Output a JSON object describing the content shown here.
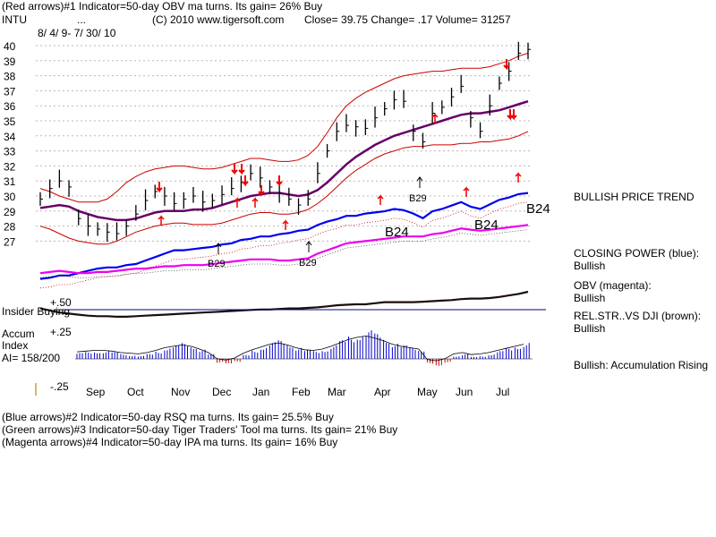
{
  "header": {
    "line1": "(Red arrows)#1 Indicator=50-day OBV ma turns. Its gain= 26% Buy",
    "ticker": "INTU",
    "dots": "...",
    "copyright": "(C) 2010 www.tigersoft.com",
    "close": "Close=  39.75  Change= .17 Volume= 31257",
    "date_range": "8/ 4/ 9- 7/ 30/ 10"
  },
  "footer": {
    "line1": "(Blue arrows)#2 Indicator=50-day RSQ ma turns. Its gain= 25.5% Buy",
    "line2": "(Green arrows)#3 Indicator=50-day Tiger Traders' Tool ma turns. Its gain= 21% Buy",
    "line3": "(Magenta arrows)#4 Indicator=50-day IPA ma turns. Its gain= 16% Buy"
  },
  "side_panel": {
    "trend": "BULLISH PRICE TREND",
    "cp_label": "CLOSING POWER (blue):",
    "cp_value": "Bullish",
    "obv_label": "OBV (magenta):",
    "obv_value": "Bullish",
    "rs_label": "REL.STR..VS DJI (brown):",
    "rs_value": "Bullish",
    "accum_note": "Bullish: Accumulation Rising"
  },
  "lower_panel": {
    "plus50": "+.50",
    "insider": "Insider Buying",
    "plus25": "+.25",
    "accum1": "Accum",
    "accum2": "Index",
    "ai": "AI= 158/200",
    "minus25": "-.25"
  },
  "chart_data": {
    "type": "line",
    "y_ticks": [
      "40",
      "39",
      "38",
      "37",
      "36",
      "35",
      "34",
      "33",
      "32",
      "31",
      "30",
      "29",
      "28",
      "27"
    ],
    "x_labels": [
      "Sep",
      "Oct",
      "Nov",
      "Dec",
      "Jan",
      "Feb",
      "Mar",
      "Apr",
      "May",
      "Jun",
      "Jul"
    ],
    "ylim": [
      26.5,
      40.5
    ],
    "grid": true,
    "price_close": [
      29.8,
      30.5,
      31.0,
      30.6,
      28.5,
      28.0,
      27.8,
      27.6,
      27.5,
      28.0,
      28.8,
      29.7,
      30.3,
      30.0,
      29.5,
      29.8,
      30.0,
      29.6,
      29.7,
      30.1,
      30.5,
      30.9,
      31.5,
      31.2,
      30.6,
      30.2,
      29.8,
      29.4,
      29.8,
      31.5,
      33.0,
      34.3,
      34.7,
      34.6,
      34.5,
      35.2,
      35.8,
      36.4,
      36.3,
      34.3,
      33.6,
      35.5,
      35.9,
      36.6,
      37.3,
      35.2,
      34.3,
      36.0,
      37.5,
      38.3,
      39.5,
      39.75
    ],
    "ma50": [
      29.2,
      29.3,
      29.4,
      29.3,
      29.0,
      28.8,
      28.6,
      28.5,
      28.4,
      28.4,
      28.5,
      28.7,
      28.9,
      29.0,
      29.0,
      29.0,
      29.1,
      29.1,
      29.2,
      29.4,
      29.6,
      29.8,
      30.0,
      30.1,
      30.2,
      30.2,
      30.1,
      30.0,
      30.1,
      30.4,
      30.9,
      31.5,
      32.1,
      32.6,
      33.0,
      33.4,
      33.7,
      34.0,
      34.2,
      34.4,
      34.6,
      34.8,
      35.0,
      35.2,
      35.4,
      35.5,
      35.5,
      35.6,
      35.7,
      35.9,
      36.1,
      36.3
    ],
    "band_upper": [
      30.5,
      30.3,
      30.0,
      29.8,
      29.6,
      29.6,
      29.6,
      29.8,
      30.3,
      30.9,
      31.3,
      31.6,
      31.8,
      31.9,
      32.0,
      32.0,
      31.9,
      31.8,
      31.8,
      31.9,
      32.1,
      32.3,
      32.5,
      32.5,
      32.4,
      32.3,
      32.3,
      32.4,
      32.7,
      33.3,
      34.2,
      35.2,
      36.0,
      36.5,
      36.9,
      37.2,
      37.5,
      37.8,
      38.0,
      38.1,
      38.2,
      38.3,
      38.3,
      38.4,
      38.5,
      38.5,
      38.5,
      38.6,
      38.8,
      39.0,
      39.3,
      39.5
    ],
    "band_lower": [
      28.0,
      27.8,
      27.5,
      27.2,
      27.0,
      26.9,
      26.8,
      26.8,
      27.0,
      27.3,
      27.6,
      27.8,
      28.0,
      28.1,
      28.2,
      28.2,
      28.1,
      28.1,
      28.1,
      28.2,
      28.4,
      28.6,
      28.8,
      28.9,
      28.9,
      28.8,
      28.8,
      28.9,
      29.1,
      29.5,
      30.0,
      30.6,
      31.2,
      31.7,
      32.1,
      32.5,
      32.8,
      33.0,
      33.2,
      33.3,
      33.3,
      33.4,
      33.4,
      33.4,
      33.5,
      33.5,
      33.6,
      33.6,
      33.7,
      33.8,
      34.0,
      34.3
    ],
    "series_lower": [
      {
        "name": "CLOSING POWER (blue)",
        "color": "#0000ee",
        "level": [
          0.05,
          0.06,
          0.08,
          0.08,
          0.1,
          0.12,
          0.14,
          0.15,
          0.15,
          0.17,
          0.18,
          0.21,
          0.24,
          0.27,
          0.3,
          0.3,
          0.31,
          0.32,
          0.33,
          0.35,
          0.36,
          0.39,
          0.4,
          0.42,
          0.42,
          0.44,
          0.45,
          0.47,
          0.48,
          0.52,
          0.55,
          0.57,
          0.6,
          0.6,
          0.62,
          0.63,
          0.64,
          0.66,
          0.65,
          0.62,
          0.58,
          0.64,
          0.66,
          0.69,
          0.72,
          0.68,
          0.66,
          0.7,
          0.74,
          0.76,
          0.79,
          0.8
        ]
      },
      {
        "name": "OBV (magenta)",
        "color": "#ee00ee",
        "level": [
          0.1,
          0.11,
          0.12,
          0.11,
          0.1,
          0.1,
          0.11,
          0.11,
          0.12,
          0.13,
          0.14,
          0.14,
          0.15,
          0.16,
          0.16,
          0.17,
          0.17,
          0.17,
          0.18,
          0.19,
          0.2,
          0.21,
          0.22,
          0.22,
          0.22,
          0.21,
          0.21,
          0.22,
          0.23,
          0.27,
          0.3,
          0.33,
          0.36,
          0.37,
          0.38,
          0.39,
          0.4,
          0.41,
          0.42,
          0.42,
          0.42,
          0.44,
          0.45,
          0.47,
          0.49,
          0.48,
          0.47,
          0.48,
          0.49,
          0.5,
          0.51,
          0.52
        ]
      },
      {
        "name": "REL.STR..VS DJI (brown)",
        "color": "#1a0f0a",
        "level": [
          0.3,
          0.26,
          0.22,
          0.2,
          0.18,
          0.16,
          0.15,
          0.15,
          0.14,
          0.14,
          0.15,
          0.16,
          0.17,
          0.18,
          0.19,
          0.2,
          0.21,
          0.22,
          0.23,
          0.24,
          0.25,
          0.26,
          0.27,
          0.28,
          0.28,
          0.29,
          0.3,
          0.3,
          0.31,
          0.32,
          0.34,
          0.36,
          0.37,
          0.38,
          0.38,
          0.4,
          0.42,
          0.42,
          0.42,
          0.42,
          0.43,
          0.44,
          0.45,
          0.46,
          0.48,
          0.49,
          0.49,
          0.5,
          0.52,
          0.55,
          0.58,
          0.62
        ]
      }
    ],
    "accum_index": [
      0.06,
      0.07,
      0.08,
      0.08,
      0.07,
      0.05,
      0.04,
      0.03,
      0.05,
      0.08,
      0.12,
      0.14,
      0.16,
      0.14,
      0.1,
      0.05,
      -0.04,
      -0.06,
      -0.03,
      0.04,
      0.09,
      0.13,
      0.17,
      0.19,
      0.16,
      0.12,
      0.09,
      0.08,
      0.1,
      0.14,
      0.19,
      0.24,
      0.27,
      0.29,
      0.26,
      0.22,
      0.17,
      0.14,
      0.12,
      0.1,
      -0.05,
      -0.07,
      -0.04,
      0.03,
      0.05,
      0.02,
      0.03,
      0.05,
      0.08,
      0.11,
      0.14,
      0.17
    ],
    "signal_labels": [
      "B29",
      "B29",
      "B29",
      "B24",
      "B24",
      "B24"
    ]
  }
}
